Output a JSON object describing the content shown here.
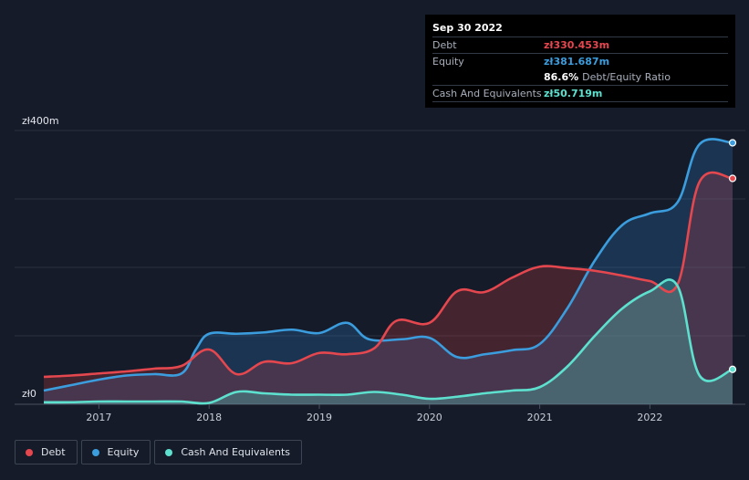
{
  "tooltip": {
    "date": "Sep 30 2022",
    "rows": [
      {
        "label": "Debt",
        "value": "zł330.453m",
        "color": "#e5474f"
      },
      {
        "label": "Equity",
        "value": "zł381.687m",
        "color": "#3b9ddd"
      },
      {
        "ratio": "86.6%",
        "ratio_label": "Debt/Equity Ratio"
      },
      {
        "label": "Cash And Equivalents",
        "value": "zł50.719m",
        "color": "#5ee0cf"
      }
    ]
  },
  "legend": [
    {
      "label": "Debt",
      "color": "#e5474f"
    },
    {
      "label": "Equity",
      "color": "#3b9ddd"
    },
    {
      "label": "Cash And Equivalents",
      "color": "#5ee0cf"
    }
  ],
  "chart_data": {
    "type": "area",
    "title": "",
    "xlabel": "",
    "ylabel": "",
    "y_tick_labels": [
      "zł0",
      "zł400m"
    ],
    "ylim": [
      0,
      400
    ],
    "xlim": [
      2016.5,
      2022.75
    ],
    "x_tick_labels": [
      "2017",
      "2018",
      "2019",
      "2020",
      "2021",
      "2022"
    ],
    "x_tick_values": [
      2017,
      2018,
      2019,
      2020,
      2021,
      2022
    ],
    "grid": true,
    "series": [
      {
        "name": "Equity",
        "color": "#3b9ddd",
        "points": [
          [
            2016.5,
            20
          ],
          [
            2016.75,
            28
          ],
          [
            2017.0,
            36
          ],
          [
            2017.25,
            42
          ],
          [
            2017.5,
            44
          ],
          [
            2017.75,
            45
          ],
          [
            2017.88,
            80
          ],
          [
            2018.0,
            103
          ],
          [
            2018.25,
            103
          ],
          [
            2018.5,
            105
          ],
          [
            2018.75,
            109
          ],
          [
            2019.0,
            104
          ],
          [
            2019.25,
            119
          ],
          [
            2019.45,
            95
          ],
          [
            2019.75,
            95
          ],
          [
            2020.0,
            97
          ],
          [
            2020.25,
            69
          ],
          [
            2020.5,
            73
          ],
          [
            2020.75,
            79
          ],
          [
            2021.0,
            88
          ],
          [
            2021.25,
            140
          ],
          [
            2021.5,
            210
          ],
          [
            2021.75,
            262
          ],
          [
            2022.0,
            279
          ],
          [
            2022.25,
            295
          ],
          [
            2022.45,
            380
          ],
          [
            2022.75,
            382
          ]
        ]
      },
      {
        "name": "Debt",
        "color": "#e5474f",
        "points": [
          [
            2016.5,
            40
          ],
          [
            2016.75,
            42
          ],
          [
            2017.0,
            45
          ],
          [
            2017.25,
            48
          ],
          [
            2017.5,
            52
          ],
          [
            2017.75,
            56
          ],
          [
            2018.0,
            80
          ],
          [
            2018.25,
            44
          ],
          [
            2018.5,
            62
          ],
          [
            2018.75,
            60
          ],
          [
            2019.0,
            75
          ],
          [
            2019.25,
            73
          ],
          [
            2019.5,
            82
          ],
          [
            2019.7,
            122
          ],
          [
            2020.0,
            119
          ],
          [
            2020.25,
            165
          ],
          [
            2020.5,
            164
          ],
          [
            2020.75,
            185
          ],
          [
            2021.0,
            201
          ],
          [
            2021.25,
            199
          ],
          [
            2021.5,
            195
          ],
          [
            2021.75,
            188
          ],
          [
            2022.0,
            180
          ],
          [
            2022.25,
            175
          ],
          [
            2022.45,
            325
          ],
          [
            2022.75,
            330
          ]
        ]
      },
      {
        "name": "Cash And Equivalents",
        "color": "#5ee0cf",
        "points": [
          [
            2016.5,
            3
          ],
          [
            2016.75,
            3
          ],
          [
            2017.0,
            4
          ],
          [
            2017.25,
            4
          ],
          [
            2017.5,
            4
          ],
          [
            2017.75,
            4
          ],
          [
            2018.0,
            2
          ],
          [
            2018.25,
            18
          ],
          [
            2018.5,
            16
          ],
          [
            2018.75,
            14
          ],
          [
            2019.0,
            14
          ],
          [
            2019.25,
            14
          ],
          [
            2019.5,
            18
          ],
          [
            2019.75,
            14
          ],
          [
            2020.0,
            8
          ],
          [
            2020.25,
            11
          ],
          [
            2020.5,
            16
          ],
          [
            2020.75,
            20
          ],
          [
            2021.0,
            25
          ],
          [
            2021.25,
            55
          ],
          [
            2021.5,
            100
          ],
          [
            2021.75,
            140
          ],
          [
            2022.0,
            165
          ],
          [
            2022.25,
            173
          ],
          [
            2022.45,
            42
          ],
          [
            2022.75,
            51
          ]
        ]
      }
    ]
  }
}
